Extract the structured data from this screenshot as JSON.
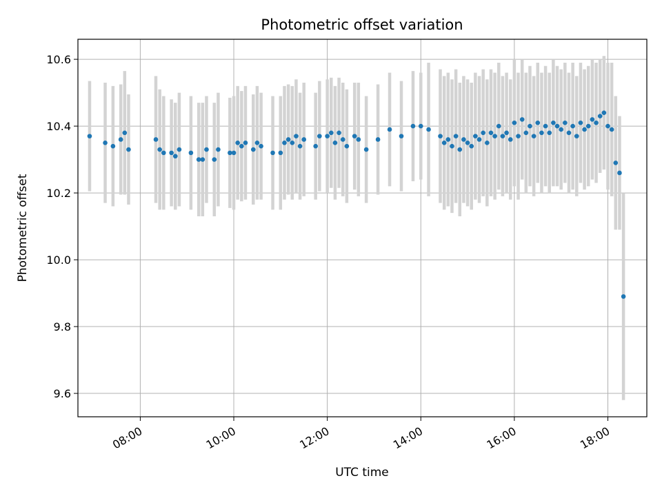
{
  "chart_data": {
    "type": "scatter",
    "title": "Photometric offset variation",
    "xlabel": "UTC time",
    "ylabel": "Photometric offset",
    "x_format": "HH:MM",
    "xlim": [
      "06:40",
      "18:50"
    ],
    "ylim": [
      9.53,
      10.66
    ],
    "x_ticks": [
      "08:00",
      "10:00",
      "12:00",
      "14:00",
      "16:00",
      "18:00"
    ],
    "y_ticks": [
      "9.6",
      "9.8",
      "10.0",
      "10.2",
      "10.4",
      "10.6"
    ],
    "grid": true,
    "colors": {
      "points": "#1f77b4",
      "errorbars": "#d3d3d3",
      "grid": "#b0b0b0"
    },
    "series": [
      {
        "x": [
          "06:55",
          "07:15",
          "07:25",
          "07:35",
          "07:40",
          "07:45",
          "08:20",
          "08:25",
          "08:30",
          "08:40",
          "08:45",
          "08:50",
          "09:05",
          "09:15",
          "09:20",
          "09:25",
          "09:35",
          "09:40",
          "09:55",
          "10:00",
          "10:05",
          "10:10",
          "10:15",
          "10:25",
          "10:30",
          "10:35",
          "10:50",
          "11:00",
          "11:05",
          "11:10",
          "11:15",
          "11:20",
          "11:25",
          "11:30",
          "11:45",
          "11:50",
          "12:00",
          "12:05",
          "12:10",
          "12:15",
          "12:20",
          "12:25",
          "12:35",
          "12:40",
          "12:50",
          "13:05",
          "13:20",
          "13:35",
          "13:50",
          "14:00",
          "14:10",
          "14:25",
          "14:30",
          "14:35",
          "14:40",
          "14:45",
          "14:50",
          "14:55",
          "15:00",
          "15:05",
          "15:10",
          "15:15",
          "15:20",
          "15:25",
          "15:30",
          "15:35",
          "15:40",
          "15:45",
          "15:50",
          "15:55",
          "16:00",
          "16:05",
          "16:10",
          "16:15",
          "16:20",
          "16:25",
          "16:30",
          "16:35",
          "16:40",
          "16:45",
          "16:50",
          "16:55",
          "17:00",
          "17:05",
          "17:10",
          "17:15",
          "17:20",
          "17:25",
          "17:30",
          "17:35",
          "17:40",
          "17:45",
          "17:50",
          "17:55",
          "18:00",
          "18:05",
          "18:10",
          "18:15",
          "18:20"
        ],
        "y": [
          10.37,
          10.35,
          10.34,
          10.36,
          10.38,
          10.33,
          10.36,
          10.33,
          10.32,
          10.32,
          10.31,
          10.33,
          10.32,
          10.3,
          10.3,
          10.33,
          10.3,
          10.33,
          10.32,
          10.32,
          10.35,
          10.34,
          10.35,
          10.33,
          10.35,
          10.34,
          10.32,
          10.32,
          10.35,
          10.36,
          10.35,
          10.37,
          10.34,
          10.36,
          10.34,
          10.37,
          10.37,
          10.38,
          10.35,
          10.38,
          10.36,
          10.34,
          10.37,
          10.36,
          10.33,
          10.36,
          10.39,
          10.37,
          10.4,
          10.4,
          10.39,
          10.37,
          10.35,
          10.36,
          10.34,
          10.37,
          10.33,
          10.36,
          10.35,
          10.34,
          10.37,
          10.36,
          10.38,
          10.35,
          10.38,
          10.37,
          10.4,
          10.37,
          10.38,
          10.36,
          10.41,
          10.37,
          10.42,
          10.38,
          10.4,
          10.37,
          10.41,
          10.38,
          10.4,
          10.38,
          10.41,
          10.4,
          10.39,
          10.41,
          10.38,
          10.4,
          10.37,
          10.41,
          10.39,
          10.4,
          10.42,
          10.41,
          10.43,
          10.44,
          10.4,
          10.39,
          10.29,
          10.26,
          9.89
        ],
        "yerr": [
          0.165,
          0.18,
          0.18,
          0.165,
          0.185,
          0.165,
          0.19,
          0.18,
          0.17,
          0.16,
          0.16,
          0.17,
          0.17,
          0.17,
          0.17,
          0.16,
          0.17,
          0.17,
          0.165,
          0.17,
          0.17,
          0.165,
          0.17,
          0.165,
          0.17,
          0.16,
          0.17,
          0.17,
          0.17,
          0.165,
          0.17,
          0.17,
          0.16,
          0.17,
          0.16,
          0.165,
          0.17,
          0.165,
          0.17,
          0.165,
          0.17,
          0.17,
          0.16,
          0.17,
          0.16,
          0.165,
          0.17,
          0.165,
          0.165,
          0.16,
          0.2,
          0.2,
          0.2,
          0.2,
          0.2,
          0.2,
          0.2,
          0.19,
          0.19,
          0.19,
          0.19,
          0.19,
          0.19,
          0.19,
          0.19,
          0.19,
          0.19,
          0.18,
          0.18,
          0.18,
          0.19,
          0.19,
          0.18,
          0.18,
          0.18,
          0.18,
          0.18,
          0.18,
          0.18,
          0.18,
          0.19,
          0.18,
          0.18,
          0.18,
          0.18,
          0.19,
          0.18,
          0.18,
          0.18,
          0.18,
          0.18,
          0.18,
          0.17,
          0.17,
          0.19,
          0.2,
          0.2,
          0.17,
          0.31
        ]
      }
    ]
  }
}
